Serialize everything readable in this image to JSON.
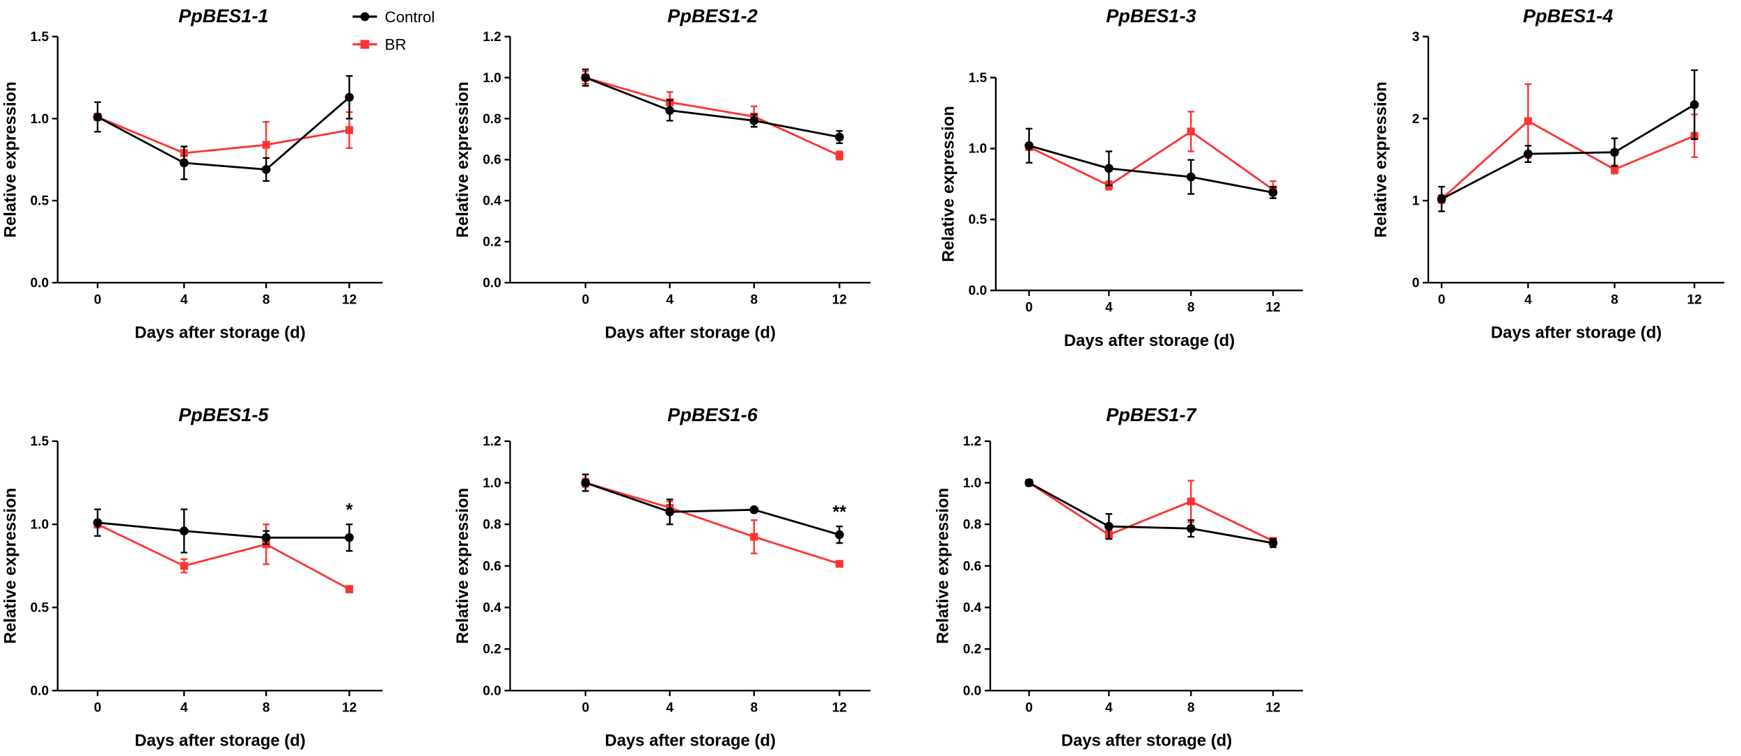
{
  "legend": {
    "control": "Control",
    "br": "BR"
  },
  "colors": {
    "control": "#000000",
    "br": "#ff3333"
  },
  "chart_data": [
    {
      "type": "line",
      "title": "PpBES1-1",
      "xlabel": "Days after storage (d)",
      "ylabel": "Relative expression",
      "x": [
        0,
        4,
        8,
        12
      ],
      "ylim": [
        0,
        1.5
      ],
      "yticks": [
        "0.0",
        "0.5",
        "1.0",
        "1.5"
      ],
      "ytick_values": [
        0,
        0.5,
        1,
        1.5
      ],
      "series": [
        {
          "name": "Control",
          "values": [
            1.01,
            0.73,
            0.69,
            1.13
          ],
          "errors": [
            0.09,
            0.1,
            0.07,
            0.13
          ]
        },
        {
          "name": "BR",
          "values": [
            1.01,
            0.79,
            0.84,
            0.93
          ],
          "errors": [
            0.02,
            0.04,
            0.14,
            0.11
          ]
        }
      ],
      "annotations": []
    },
    {
      "type": "line",
      "title": "PpBES1-2",
      "xlabel": "Days after storage (d)",
      "ylabel": "Relative expression",
      "x": [
        0,
        4,
        8,
        12
      ],
      "ylim": [
        0,
        1.2
      ],
      "yticks": [
        "0.0",
        "0.2",
        "0.4",
        "0.6",
        "0.8",
        "1.0",
        "1.2"
      ],
      "ytick_values": [
        0,
        0.2,
        0.4,
        0.6,
        0.8,
        1.0,
        1.2
      ],
      "series": [
        {
          "name": "Control",
          "values": [
            1.0,
            0.84,
            0.79,
            0.71
          ],
          "errors": [
            0.04,
            0.05,
            0.03,
            0.03
          ]
        },
        {
          "name": "BR",
          "values": [
            1.0,
            0.88,
            0.81,
            0.62
          ],
          "errors": [
            0.03,
            0.05,
            0.05,
            0.02
          ]
        }
      ],
      "annotations": []
    },
    {
      "type": "line",
      "title": "PpBES1-3",
      "xlabel": "Days after storage (d)",
      "ylabel": "Relative expression",
      "x": [
        0,
        4,
        8,
        12
      ],
      "ylim": [
        0,
        1.5
      ],
      "yticks": [
        "0.0",
        "0.5",
        "1.0",
        "1.5"
      ],
      "ytick_values": [
        0,
        0.5,
        1,
        1.5
      ],
      "series": [
        {
          "name": "Control",
          "values": [
            1.02,
            0.86,
            0.8,
            0.69
          ],
          "errors": [
            0.12,
            0.12,
            0.12,
            0.04
          ]
        },
        {
          "name": "BR",
          "values": [
            1.01,
            0.74,
            1.12,
            0.71
          ],
          "errors": [
            0.02,
            0.03,
            0.14,
            0.06
          ]
        }
      ],
      "annotations": []
    },
    {
      "type": "line",
      "title": "PpBES1-4",
      "xlabel": "Days after storage (d)",
      "ylabel": "Relative expression",
      "x": [
        0,
        4,
        8,
        12
      ],
      "ylim": [
        0,
        3
      ],
      "yticks": [
        "0",
        "1",
        "2",
        "3"
      ],
      "ytick_values": [
        0,
        1,
        2,
        3
      ],
      "series": [
        {
          "name": "Control",
          "values": [
            1.02,
            1.57,
            1.59,
            2.17
          ],
          "errors": [
            0.15,
            0.1,
            0.17,
            0.42
          ]
        },
        {
          "name": "BR",
          "values": [
            1.02,
            1.97,
            1.38,
            1.79
          ],
          "errors": [
            0.05,
            0.45,
            0.05,
            0.26
          ]
        }
      ],
      "annotations": []
    },
    {
      "type": "line",
      "title": "PpBES1-5",
      "xlabel": "Days after storage (d)",
      "ylabel": "Relative expression",
      "x": [
        0,
        4,
        8,
        12
      ],
      "ylim": [
        0,
        1.5
      ],
      "yticks": [
        "0.0",
        "0.5",
        "1.0",
        "1.5"
      ],
      "ytick_values": [
        0,
        0.5,
        1,
        1.5
      ],
      "series": [
        {
          "name": "Control",
          "values": [
            1.01,
            0.96,
            0.92,
            0.92
          ],
          "errors": [
            0.08,
            0.13,
            0.04,
            0.08
          ]
        },
        {
          "name": "BR",
          "values": [
            1.0,
            0.75,
            0.88,
            0.61
          ],
          "errors": [
            0.02,
            0.04,
            0.12,
            0.02
          ]
        }
      ],
      "annotations": [
        {
          "x": 12,
          "y": 1.05,
          "text": "*"
        }
      ]
    },
    {
      "type": "line",
      "title": "PpBES1-6",
      "xlabel": "Days after storage (d)",
      "ylabel": "Relative expression",
      "x": [
        0,
        4,
        8,
        12
      ],
      "ylim": [
        0,
        1.2
      ],
      "yticks": [
        "0.0",
        "0.2",
        "0.4",
        "0.6",
        "0.8",
        "1.0",
        "1.2"
      ],
      "ytick_values": [
        0,
        0.2,
        0.4,
        0.6,
        0.8,
        1.0,
        1.2
      ],
      "series": [
        {
          "name": "Control",
          "values": [
            1.0,
            0.86,
            0.87,
            0.75
          ],
          "errors": [
            0.04,
            0.06,
            0.01,
            0.04
          ]
        },
        {
          "name": "BR",
          "values": [
            1.0,
            0.88,
            0.74,
            0.61
          ],
          "errors": [
            0.02,
            0.03,
            0.08,
            0.01
          ]
        }
      ],
      "annotations": [
        {
          "x": 12,
          "y": 0.83,
          "text": "**"
        }
      ]
    },
    {
      "type": "line",
      "title": "PpBES1-7",
      "xlabel": "Days after storage (d)",
      "ylabel": "Relative expression",
      "x": [
        0,
        4,
        8,
        12
      ],
      "ylim": [
        0,
        1.2
      ],
      "yticks": [
        "0.0",
        "0.2",
        "0.4",
        "0.6",
        "0.8",
        "1.0",
        "1.2"
      ],
      "ytick_values": [
        0,
        0.2,
        0.4,
        0.6,
        0.8,
        1.0,
        1.2
      ],
      "series": [
        {
          "name": "Control",
          "values": [
            1.0,
            0.79,
            0.78,
            0.71
          ],
          "errors": [
            0.01,
            0.06,
            0.04,
            0.02
          ]
        },
        {
          "name": "BR",
          "values": [
            1.0,
            0.75,
            0.91,
            0.72
          ],
          "errors": [
            0.01,
            0.02,
            0.1,
            0.01
          ]
        }
      ],
      "annotations": []
    }
  ]
}
